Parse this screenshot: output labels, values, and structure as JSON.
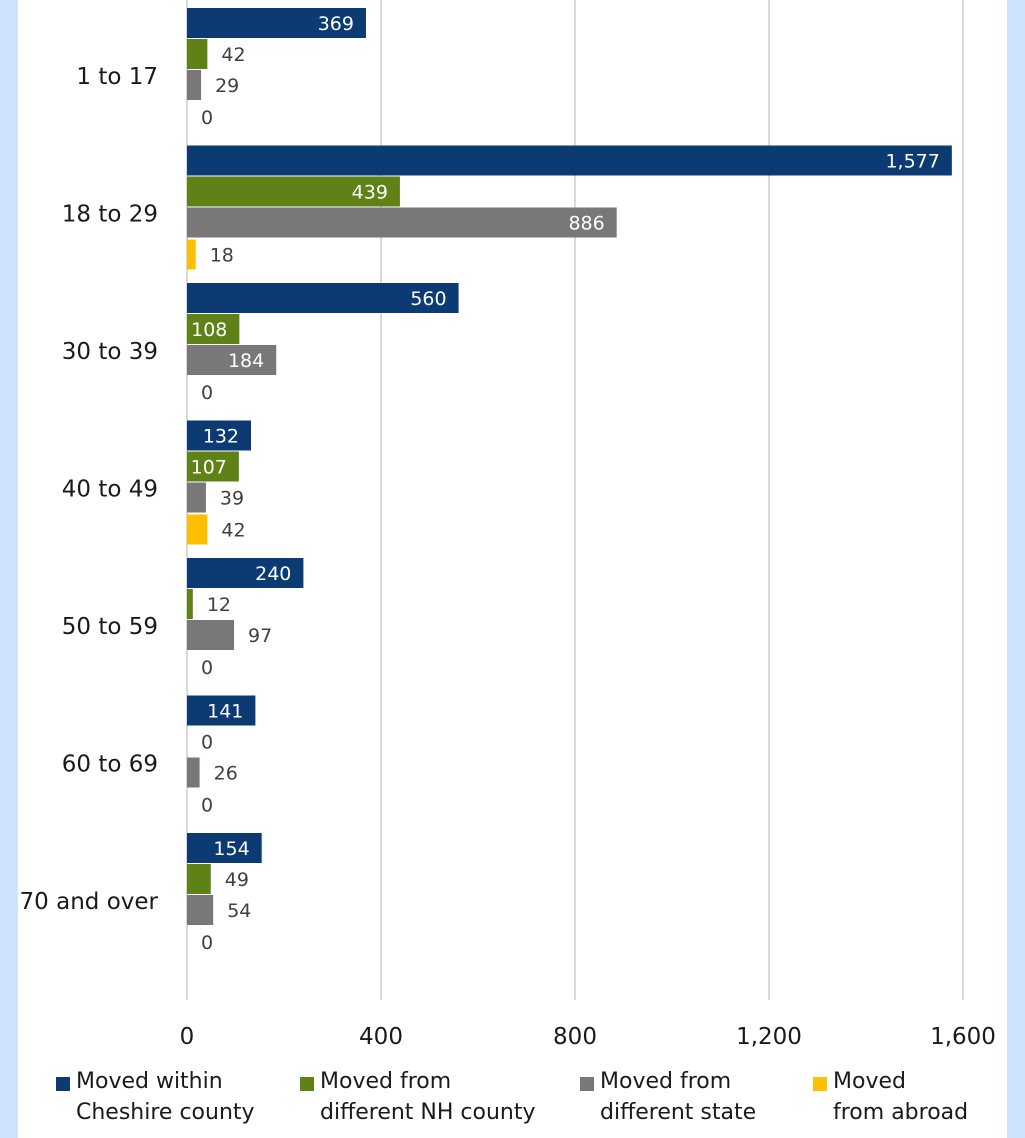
{
  "colors": {
    "within": "#0c3a72",
    "nh_county": "#5e8216",
    "state": "#7a7779",
    "abroad": "#fdc000",
    "grid": "#d9d9d9",
    "edge": "#cfe2ff"
  },
  "chart_data": {
    "type": "bar",
    "orientation": "horizontal",
    "categories": [
      "1 to 17",
      "18 to 29",
      "30 to 39",
      "40 to 49",
      "50 to 59",
      "60 to 69",
      "70 and over"
    ],
    "series": [
      {
        "name": "Moved within\nCheshire county",
        "color": "#0c3a72",
        "values": [
          369,
          1577,
          560,
          132,
          240,
          141,
          154
        ]
      },
      {
        "name": "Moved from\ndifferent NH county",
        "color": "#5e8216",
        "values": [
          42,
          439,
          108,
          107,
          12,
          0,
          49
        ]
      },
      {
        "name": "Moved from\ndifferent state",
        "color": "#7a7779",
        "values": [
          29,
          886,
          184,
          39,
          97,
          26,
          54
        ]
      },
      {
        "name": "Moved\nfrom abroad",
        "color": "#fdc000",
        "values": [
          0,
          18,
          0,
          42,
          0,
          0,
          0
        ]
      }
    ],
    "value_labels": [
      [
        "369",
        "42",
        "29",
        "0"
      ],
      [
        "1,577",
        "439",
        "886",
        "18"
      ],
      [
        "560",
        "108",
        "184",
        "0"
      ],
      [
        "132",
        "107",
        "39",
        "42"
      ],
      [
        "240",
        "12",
        "97",
        "0"
      ],
      [
        "141",
        "0",
        "26",
        "0"
      ],
      [
        "154",
        "49",
        "54",
        "0"
      ]
    ],
    "xlim": [
      0,
      1600
    ],
    "xticks": [
      0,
      400,
      800,
      1200,
      1600
    ],
    "xtick_labels": [
      "0",
      "400",
      "800",
      "1,200",
      "1,600"
    ],
    "grid": true,
    "legend": "bottom",
    "title": "",
    "xlabel": "",
    "ylabel": ""
  }
}
